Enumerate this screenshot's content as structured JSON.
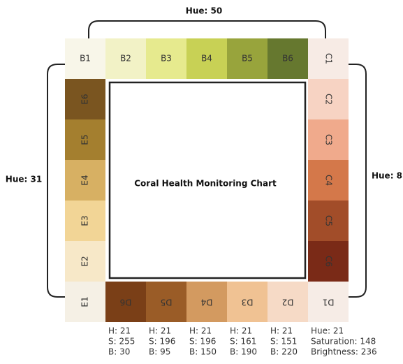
{
  "center_title": "Coral Health Monitoring Chart",
  "hue_labels": {
    "top": "Hue: 50",
    "left": "Hue: 31",
    "right": "Hue: 8"
  },
  "sides": {
    "top": [
      {
        "label": "B1",
        "color": "#f8f6e9"
      },
      {
        "label": "B2",
        "color": "#f2f2c6"
      },
      {
        "label": "B3",
        "color": "#e6ea8e"
      },
      {
        "label": "B4",
        "color": "#c8d155"
      },
      {
        "label": "B5",
        "color": "#98a43c"
      },
      {
        "label": "B6",
        "color": "#66782f"
      }
    ],
    "right": [
      {
        "label": "C1",
        "color": "#f7ebe5"
      },
      {
        "label": "C2",
        "color": "#f7d3c3"
      },
      {
        "label": "C3",
        "color": "#f0aa8c"
      },
      {
        "label": "C4",
        "color": "#d4784a"
      },
      {
        "label": "C5",
        "color": "#a24d29"
      },
      {
        "label": "C6",
        "color": "#7a2a17"
      }
    ],
    "bottom": [
      {
        "label": "D1",
        "color": "#f6ece6"
      },
      {
        "label": "D2",
        "color": "#f6dac6"
      },
      {
        "label": "D3",
        "color": "#f0c293"
      },
      {
        "label": "D4",
        "color": "#d39a60"
      },
      {
        "label": "D5",
        "color": "#9a5c27"
      },
      {
        "label": "D6",
        "color": "#7a3f17"
      }
    ],
    "left": [
      {
        "label": "E1",
        "color": "#f5f0e5"
      },
      {
        "label": "E2",
        "color": "#f7e8c8"
      },
      {
        "label": "E3",
        "color": "#f2d596"
      },
      {
        "label": "E4",
        "color": "#d7b063"
      },
      {
        "label": "E5",
        "color": "#a47f2f"
      },
      {
        "label": "E6",
        "color": "#7a5520"
      }
    ]
  },
  "info": [
    [
      "H: 21",
      "S: 255",
      "B: 30"
    ],
    [
      "H: 21",
      "S: 196",
      "B: 95"
    ],
    [
      "H: 21",
      "S: 196",
      "B: 150"
    ],
    [
      "H: 21",
      "S: 161",
      "B: 190"
    ],
    [
      "H: 21",
      "S: 151",
      "B: 220"
    ],
    [
      "Hue: 21",
      "Saturation: 148",
      "Brightness: 236"
    ]
  ]
}
